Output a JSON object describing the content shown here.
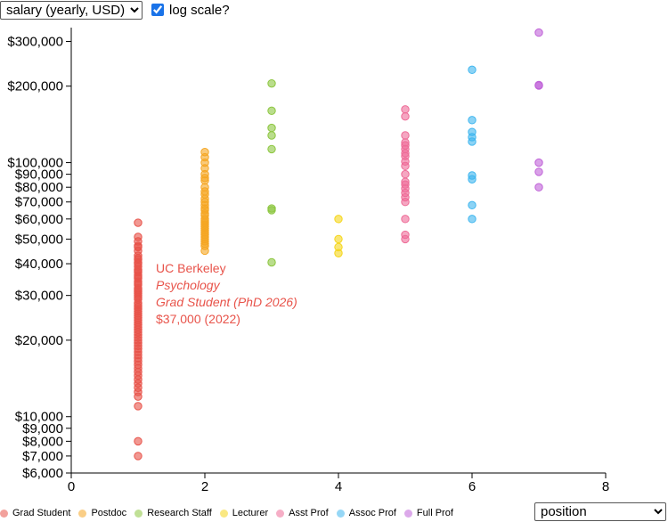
{
  "controls": {
    "metric_options": [
      "salary (yearly, USD)"
    ],
    "metric_selected": "salary (yearly, USD)",
    "log_scale_label": "log scale?",
    "log_scale_checked": true,
    "group_options": [
      "position"
    ],
    "group_selected": "position"
  },
  "chart_data": {
    "type": "scatter",
    "title": "",
    "xlabel": "",
    "ylabel": "",
    "x_scale": "linear",
    "y_scale": "log",
    "xlim": [
      0,
      8
    ],
    "ylim": [
      6000,
      340000
    ],
    "x_ticks": [
      0,
      2,
      4,
      6,
      8
    ],
    "y_ticks": [
      6000,
      7000,
      8000,
      9000,
      10000,
      20000,
      30000,
      40000,
      50000,
      60000,
      70000,
      80000,
      90000,
      100000,
      200000,
      300000
    ],
    "y_tick_labels": [
      "$6,000",
      "$7,000",
      "$8,000",
      "$9,000",
      "$10,000",
      "$20,000",
      "$30,000",
      "$40,000",
      "$50,000",
      "$60,000",
      "$70,000",
      "$80,000",
      "$90,000",
      "$100,000",
      "$200,000",
      "$300,000"
    ],
    "grid": false,
    "legend_position": "bottom-left",
    "series": [
      {
        "name": "Grad Student",
        "color": "#e8534a",
        "x": 1,
        "values": [
          58000,
          51000,
          49000,
          47000,
          46500,
          45000,
          43000,
          42000,
          41500,
          40500,
          40000,
          39000,
          38000,
          37500,
          37000,
          36000,
          35500,
          35000,
          34000,
          33500,
          33000,
          32000,
          31500,
          31000,
          30500,
          30000,
          29500,
          29000,
          28000,
          27500,
          27000,
          26500,
          26000,
          25500,
          25000,
          24500,
          24000,
          23500,
          23000,
          22500,
          22000,
          21500,
          21000,
          20500,
          20000,
          19500,
          19000,
          18500,
          18000,
          17500,
          17000,
          16500,
          16000,
          15500,
          15000,
          14500,
          14000,
          13500,
          13000,
          12500,
          12000,
          11000,
          8000,
          7000
        ]
      },
      {
        "name": "Postdoc",
        "color": "#f5a623",
        "x": 2,
        "values": [
          110000,
          105000,
          100000,
          95000,
          90000,
          87000,
          85000,
          80000,
          77000,
          75000,
          72000,
          70000,
          68000,
          66000,
          65000,
          63000,
          62000,
          60000,
          59000,
          58000,
          57000,
          56000,
          55000,
          54000,
          53000,
          52000,
          51000,
          50000,
          49000,
          48000,
          47000,
          45000
        ]
      },
      {
        "name": "Research Staff",
        "color": "#8cc63f",
        "x": 3,
        "values": [
          205000,
          160000,
          137000,
          128000,
          113000,
          66000,
          65000,
          40500
        ]
      },
      {
        "name": "Lecturer",
        "color": "#f5d61b",
        "x": 4,
        "values": [
          60000,
          50000,
          46500,
          44000
        ]
      },
      {
        "name": "Asst Prof",
        "color": "#ee6b97",
        "x": 5,
        "values": [
          162000,
          152000,
          128000,
          120000,
          117000,
          113000,
          109000,
          106000,
          101000,
          97000,
          90000,
          84000,
          82000,
          79000,
          76000,
          73000,
          70000,
          60000,
          52000,
          50000
        ]
      },
      {
        "name": "Assoc Prof",
        "color": "#3fb6ef",
        "x": 6,
        "values": [
          232000,
          147000,
          132000,
          126000,
          121000,
          89000,
          86000,
          68000,
          60000
        ]
      },
      {
        "name": "Full Prof",
        "color": "#c063d8",
        "x": 7,
        "values": [
          325000,
          202000,
          201000,
          100000,
          92000,
          80000
        ]
      }
    ],
    "annotation": {
      "x": 1,
      "y": 37000,
      "lines": [
        "UC Berkeley",
        "Psychology",
        "Grad Student (PhD 2026)",
        "$37,000 (2022)"
      ],
      "color": "#e8534a"
    }
  }
}
